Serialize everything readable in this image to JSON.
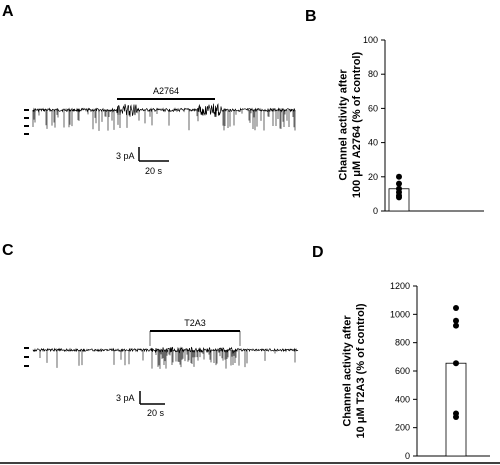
{
  "panels": {
    "a": {
      "letter": "A",
      "drug_label": "A2764",
      "scale_current": "3 pA",
      "scale_time": "20 s"
    },
    "b": {
      "letter": "B"
    },
    "c": {
      "letter": "C",
      "drug_label": "T2A3",
      "scale_current": "3 pA",
      "scale_time": "20 s"
    },
    "d": {
      "letter": "D"
    }
  },
  "colors": {
    "trace": "#000000",
    "bar_fill": "#ffffff",
    "points": "#000000"
  },
  "chart_data": [
    {
      "type": "bar",
      "panel": "B",
      "title": "",
      "xlabel": "",
      "ylabel": "Channel activity after 100 μM A2764 (% of control)",
      "ylim": [
        0,
        100
      ],
      "yticks": [
        0,
        20,
        40,
        60,
        80,
        100
      ],
      "categories": [
        ""
      ],
      "values": [
        13
      ],
      "points": [
        20,
        16,
        13,
        11,
        9,
        8
      ]
    },
    {
      "type": "bar",
      "panel": "D",
      "title": "",
      "xlabel": "",
      "ylabel": "Channel activity after 10 μM T2A3 (% of control)",
      "ylim": [
        0,
        1200
      ],
      "yticks": [
        0,
        200,
        400,
        600,
        800,
        1000,
        1200
      ],
      "categories": [
        ""
      ],
      "values": [
        655
      ],
      "points": [
        1045,
        955,
        920,
        655,
        300,
        275
      ]
    }
  ]
}
